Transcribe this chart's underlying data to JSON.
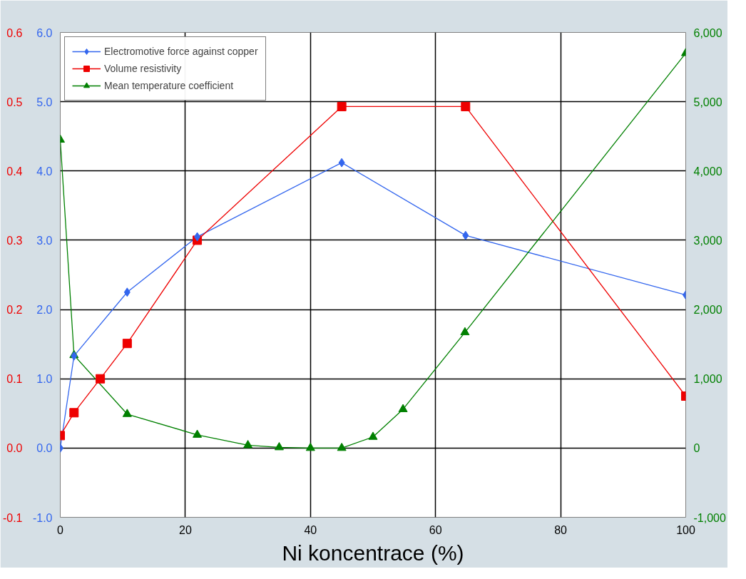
{
  "chart_data": {
    "type": "line",
    "xlabel": "Ni koncentrace (%)",
    "xlim": [
      0,
      100
    ],
    "xticks": [
      0,
      20,
      40,
      60,
      80,
      100
    ],
    "ylim": [
      -1,
      6
    ],
    "yticks": [
      {
        "value": -1,
        "label": "-1.0"
      },
      {
        "value": 0,
        "label": "0.0"
      },
      {
        "value": 1,
        "label": "1.0"
      },
      {
        "value": 2,
        "label": "2.0"
      },
      {
        "value": 3,
        "label": "3.0"
      },
      {
        "value": 4,
        "label": "4.0"
      },
      {
        "value": 5,
        "label": "5.0"
      },
      {
        "value": 6,
        "label": "6.0"
      }
    ],
    "y2lim": [
      -1000,
      6000
    ],
    "y2ticks": [
      {
        "value": -1000,
        "label": "-1,000"
      },
      0,
      {
        "value": 1000,
        "label": "1,000"
      },
      {
        "value": 2000,
        "label": "2,000"
      },
      {
        "value": 3000,
        "label": "3,000"
      },
      {
        "value": 4000,
        "label": "4,000"
      },
      {
        "value": 5000,
        "label": "5,000"
      },
      {
        "value": 6000,
        "label": "6,000"
      }
    ],
    "y3lim": [
      -0.1,
      0.6
    ],
    "y3ticks": [
      -0.1,
      {
        "value": 0,
        "label": "0.0"
      },
      0.1,
      0.2,
      0.3,
      0.4,
      0.5,
      0.6
    ],
    "grid": true,
    "legend": "top left",
    "series": [
      {
        "name": "Electromotive force against copper",
        "color": "#3366ee",
        "marker": "diamond",
        "x": [
          0,
          2.2,
          10.7,
          21.9,
          45,
          64.8,
          100
        ],
        "values": [
          0,
          1.33,
          2.25,
          3.05,
          4.12,
          3.07,
          2.21
        ]
      },
      {
        "name": "Volume resistivity",
        "color": "#ee0000",
        "marker": "square",
        "axis": "y3",
        "x": [
          0,
          2.2,
          6.4,
          10.7,
          21.9,
          45,
          64.8,
          100
        ],
        "values": [
          0.018,
          0.051,
          0.1,
          0.151,
          0.3,
          0.493,
          0.493,
          0.075
        ]
      },
      {
        "name": "Mean temperature coefficient",
        "color": "#008000",
        "marker": "triangle",
        "axis": "y2",
        "x": [
          0,
          2.2,
          10.7,
          21.9,
          30,
          35,
          40,
          45,
          50,
          54.8,
          64.7,
          100
        ],
        "values": [
          4450,
          1340,
          490,
          190,
          40,
          10,
          0,
          0,
          160,
          560,
          1670,
          5700
        ]
      }
    ]
  }
}
